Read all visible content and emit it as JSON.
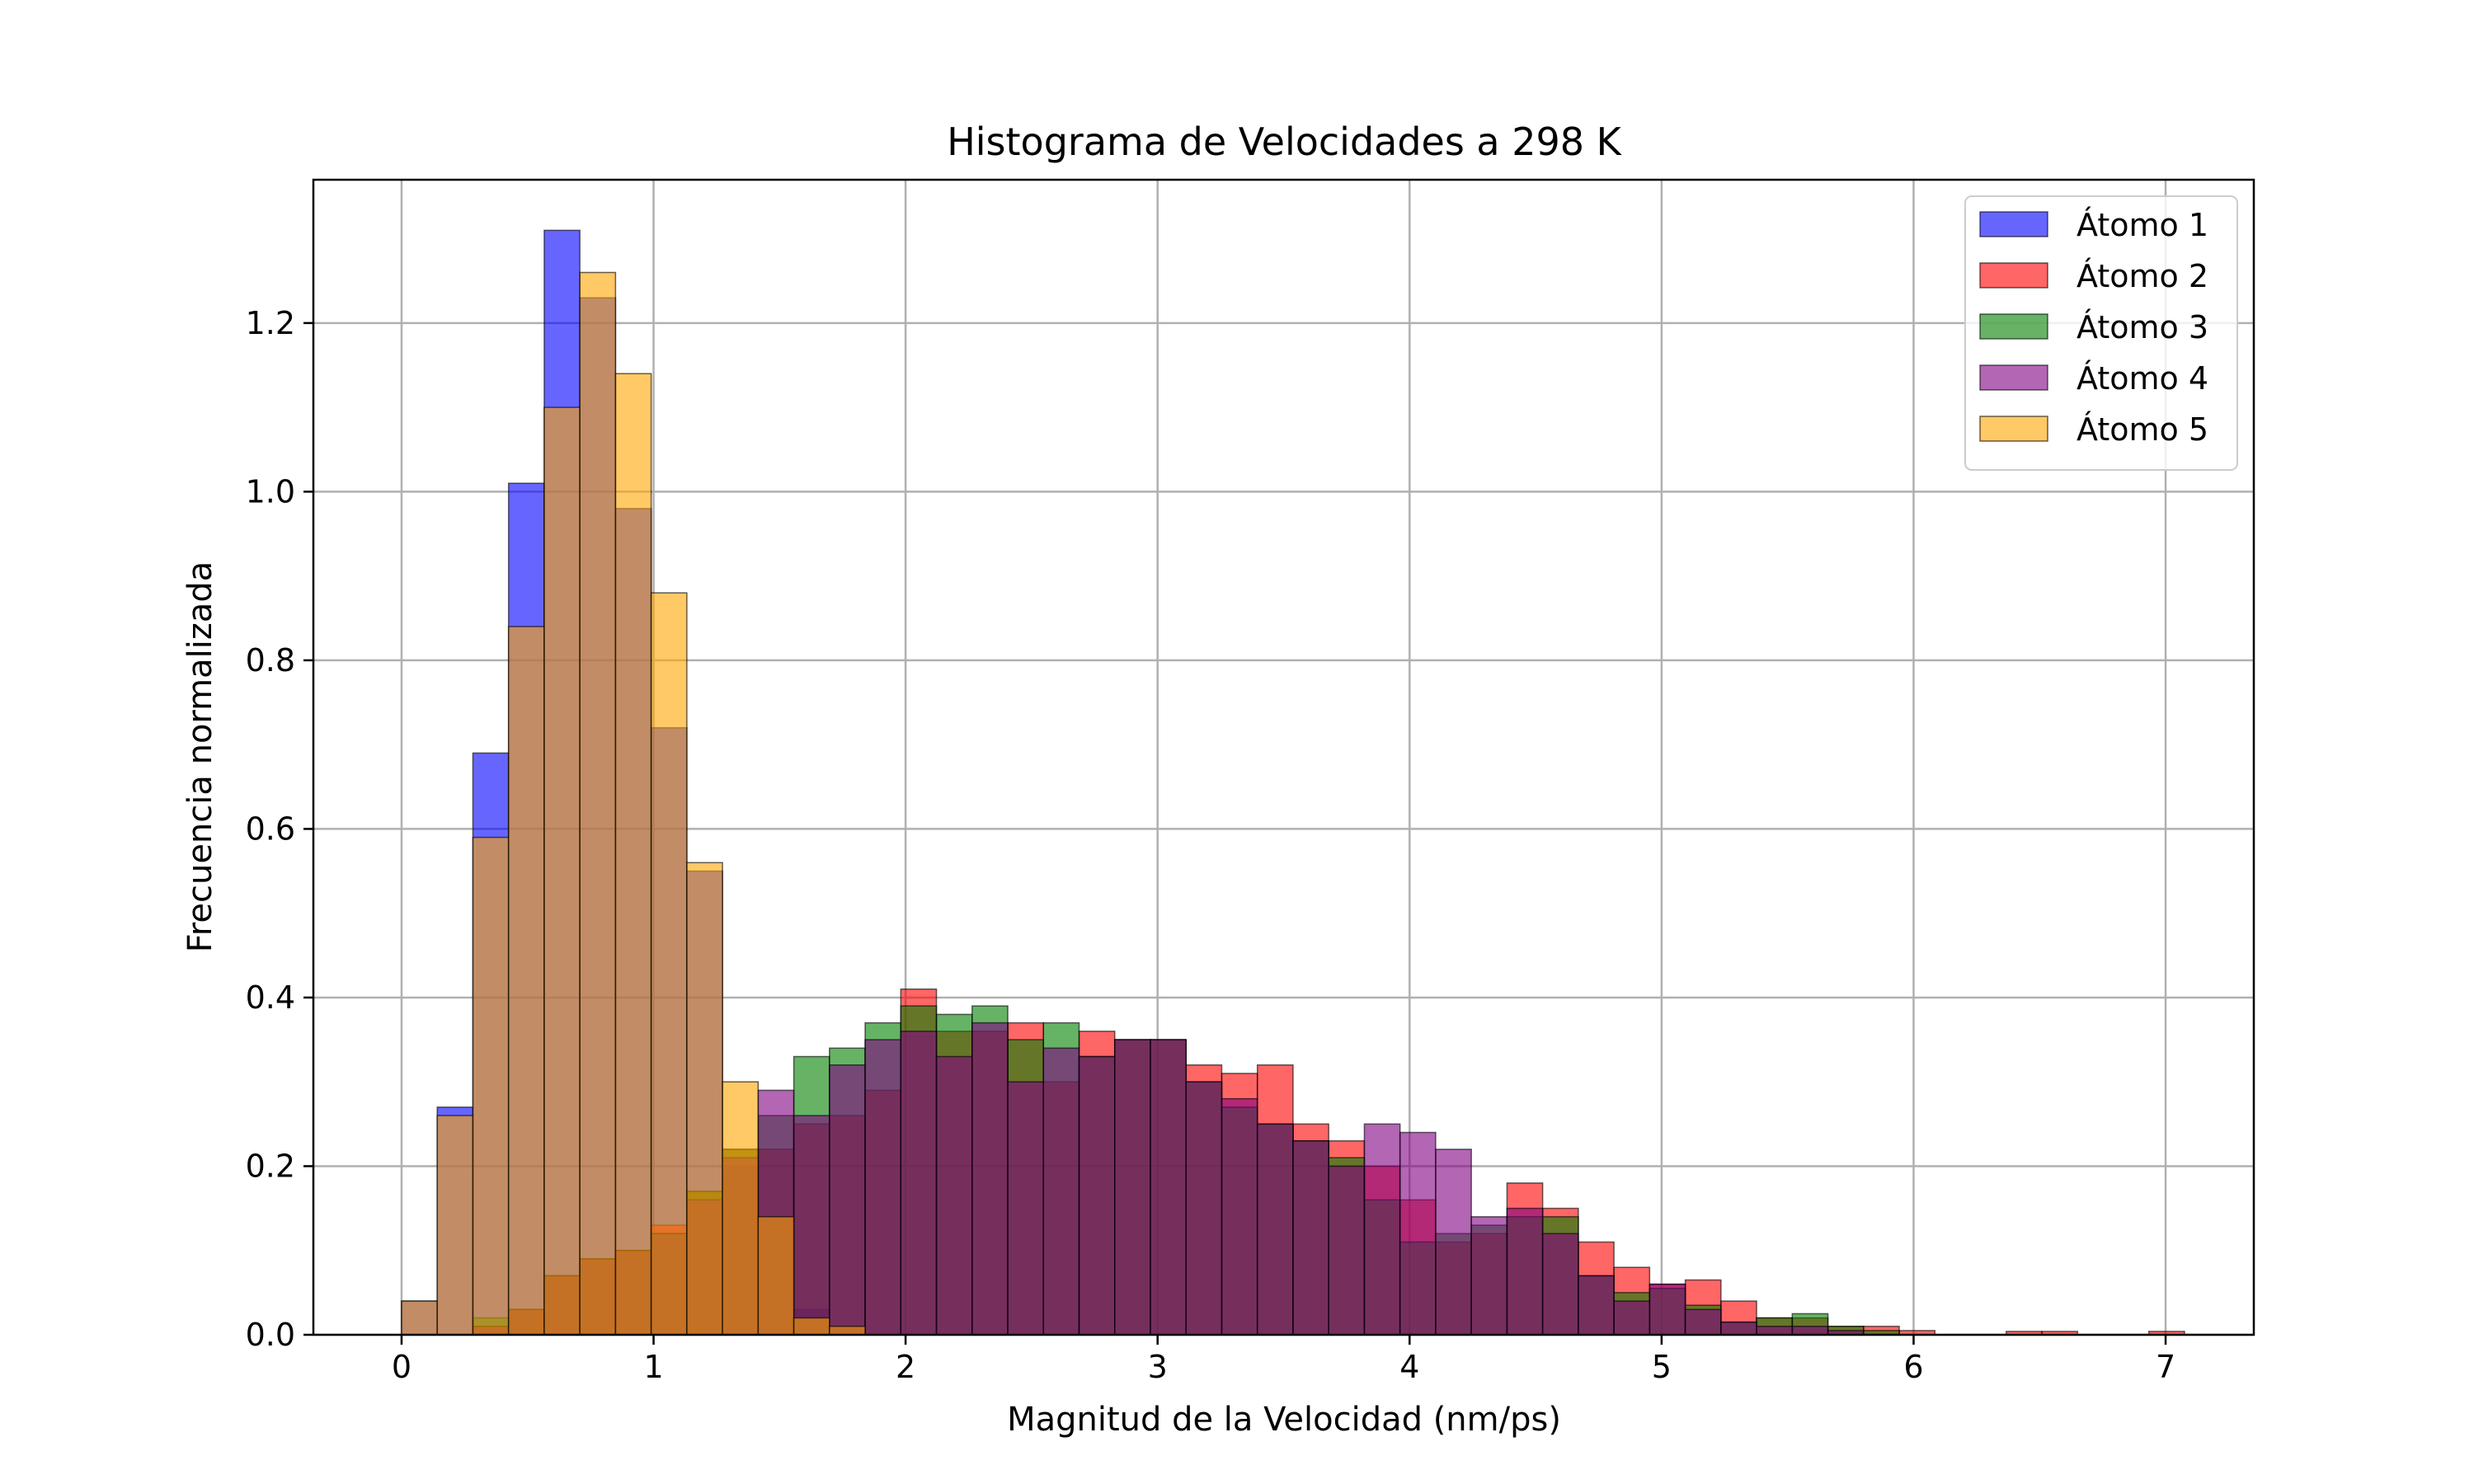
{
  "chart_data": {
    "type": "bar",
    "title": "Histograma de Velocidades a 298 K",
    "xlabel": "Magnitud de la Velocidad (nm/ps)",
    "ylabel": "Frecuencia normalizada",
    "xlim": [
      -0.35,
      7.35
    ],
    "ylim": [
      0,
      1.37
    ],
    "xticks": [
      0,
      1,
      2,
      3,
      4,
      5,
      6,
      7
    ],
    "yticks": [
      0.0,
      0.2,
      0.4,
      0.6,
      0.8,
      1.0,
      1.2
    ],
    "xtick_labels": [
      "0",
      "1",
      "2",
      "3",
      "4",
      "5",
      "6",
      "7"
    ],
    "ytick_labels": [
      "0.0",
      "0.2",
      "0.4",
      "0.6",
      "0.8",
      "1.0",
      "1.2"
    ],
    "grid": true,
    "legend_position": "top-right",
    "bins": {
      "start": 0.0,
      "width": 0.1415,
      "count": 50
    },
    "series": [
      {
        "name": "Átomo 1",
        "color": "#0000ff",
        "values": [
          0.04,
          0.27,
          0.69,
          1.01,
          1.31,
          1.23,
          0.98,
          0.72,
          0.55,
          0.2,
          0.14,
          0.03,
          0.01,
          0,
          0,
          0,
          0,
          0,
          0,
          0,
          0,
          0,
          0,
          0,
          0,
          0,
          0,
          0,
          0,
          0,
          0,
          0,
          0,
          0,
          0,
          0,
          0,
          0,
          0,
          0,
          0,
          0,
          0,
          0,
          0,
          0,
          0,
          0,
          0,
          0
        ]
      },
      {
        "name": "Átomo 2",
        "color": "#ff0000",
        "values": [
          0,
          0,
          0.01,
          0.03,
          0.07,
          0.09,
          0.1,
          0.13,
          0.17,
          0.22,
          0.22,
          0.25,
          0.26,
          0.29,
          0.41,
          0.36,
          0.36,
          0.37,
          0.3,
          0.36,
          0.35,
          0.35,
          0.32,
          0.31,
          0.32,
          0.25,
          0.23,
          0.2,
          0.16,
          0.11,
          0.12,
          0.18,
          0.15,
          0.11,
          0.08,
          0.06,
          0.065,
          0.04,
          0.02,
          0.02,
          0.01,
          0.01,
          0.005,
          0,
          0,
          0.004,
          0.004,
          0,
          0,
          0.004
        ]
      },
      {
        "name": "Átomo 3",
        "color": "#008000",
        "values": [
          0,
          0,
          0.02,
          0.03,
          0.07,
          0.09,
          0.1,
          0.12,
          0.17,
          0.22,
          0.26,
          0.33,
          0.34,
          0.37,
          0.39,
          0.38,
          0.39,
          0.35,
          0.37,
          0.33,
          0.35,
          0.35,
          0.3,
          0.27,
          0.25,
          0.23,
          0.21,
          0.16,
          0.11,
          0.12,
          0.13,
          0.14,
          0.14,
          0.07,
          0.05,
          0.055,
          0.035,
          0.015,
          0.02,
          0.025,
          0.01,
          0.005,
          0,
          0,
          0,
          0,
          0,
          0,
          0,
          0
        ]
      },
      {
        "name": "Átomo 4",
        "color": "#800080",
        "values": [
          0,
          0,
          0.01,
          0.03,
          0.07,
          0.09,
          0.1,
          0.12,
          0.16,
          0.21,
          0.29,
          0.26,
          0.32,
          0.35,
          0.36,
          0.33,
          0.37,
          0.3,
          0.34,
          0.33,
          0.35,
          0.35,
          0.3,
          0.28,
          0.25,
          0.23,
          0.2,
          0.25,
          0.24,
          0.22,
          0.14,
          0.15,
          0.12,
          0.07,
          0.04,
          0.06,
          0.03,
          0.015,
          0.01,
          0.01,
          0.005,
          0,
          0,
          0,
          0,
          0,
          0,
          0,
          0,
          0
        ]
      },
      {
        "name": "Átomo 5",
        "color": "#ffa500",
        "values": [
          0.04,
          0.26,
          0.59,
          0.84,
          1.1,
          1.26,
          1.14,
          0.88,
          0.56,
          0.3,
          0.14,
          0.02,
          0.01,
          0,
          0,
          0,
          0,
          0,
          0,
          0,
          0,
          0,
          0,
          0,
          0,
          0,
          0,
          0,
          0,
          0,
          0,
          0,
          0,
          0,
          0,
          0,
          0,
          0,
          0,
          0,
          0,
          0,
          0,
          0,
          0,
          0,
          0,
          0,
          0,
          0
        ]
      }
    ]
  }
}
